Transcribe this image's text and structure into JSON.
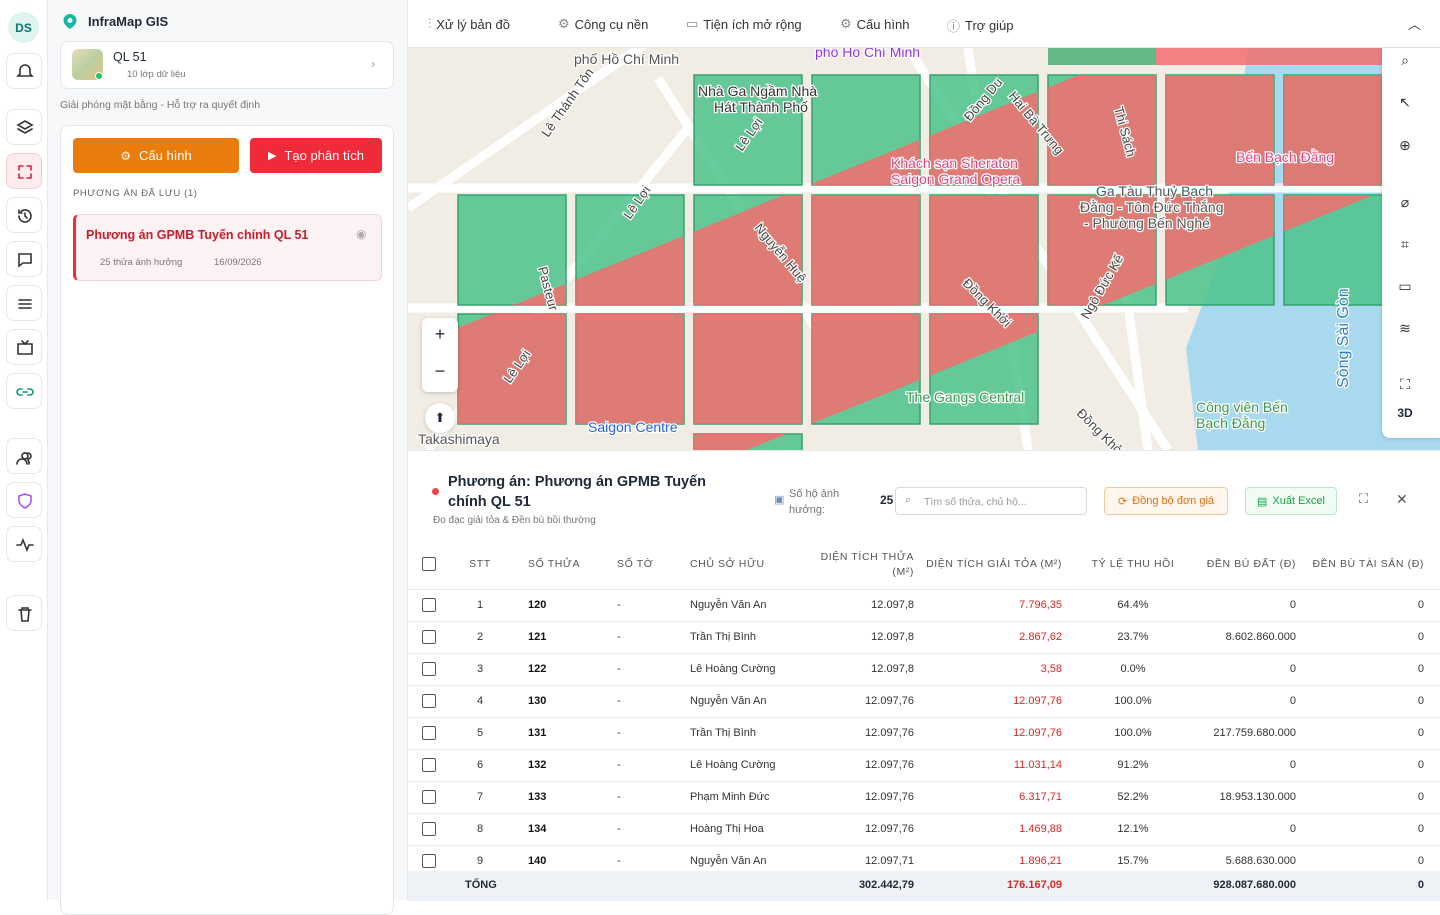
{
  "rail": {
    "avatar": "DS"
  },
  "sidebar": {
    "app_title": "InfraMap GIS",
    "project": {
      "name": "QL 51",
      "layers": "10 lớp dữ liệu"
    },
    "subtitle": "Giải phóng mặt bằng - Hỗ trợ ra quyết định",
    "buttons": [
      "Cấu hình",
      "Tạo phân tích"
    ],
    "saved_label": "PHƯƠNG ÁN ĐÃ LƯU (1)",
    "plans": [
      {
        "name": "Phương án GPMB Tuyến chính QL 51",
        "parcels": "25 thửa ảnh hưởng",
        "date": "16/09/2026"
      }
    ]
  },
  "menu": [
    "Xử lý bản đồ",
    "Công cụ nền",
    "Tiện ích mở rộng",
    "Cấu hình",
    "Trợ giúp"
  ],
  "map": {
    "labels": [
      "phố Hồ Chí Minh",
      "phố Hồ Chí Minh",
      "Nhà Ga Ngầm Nhà",
      "Hát Thành Phố",
      "Lê Thánh Tôn",
      "Lê Lợi",
      "Lê Lợi",
      "Lê Lợi",
      "Nguyễn Huệ",
      "Đồng Du",
      "Hai Bà Trưng",
      "Thi Sách",
      "Pasteur",
      "Đồng Khởi",
      "Đồng Khởi",
      "Khách sạn Sheraton",
      "Saigon Grand Opera",
      "Bến Bạch Đằng",
      "Ga Tàu Thuỷ Bạch",
      "Đằng - Tôn Đức Thắng",
      "- Phường Bến Nghé",
      "Ngô Đức Kế",
      "The Gangs Central",
      "Saigon Centre",
      "Takashimaya",
      "Công viên Bến",
      "Bạch Đằng",
      "Sông Sài Gòn"
    ],
    "zoom": [
      "+",
      "−"
    ],
    "toolbar_3d": "3D"
  },
  "panel": {
    "title": "Phương án: Phương án GPMB Tuyến chính QL 51",
    "subtitle": "Đo đạc giải tỏa & Đền bù bồi thường",
    "households_label": "Số hộ ảnh hưởng:",
    "households": "25",
    "search_placeholder": "Tìm số thửa, chủ hộ...",
    "sync": "Đồng bộ đơn giá",
    "export": "Xuất Excel"
  },
  "table": {
    "headers": [
      "STT",
      "SỐ THỬA",
      "SỐ TỜ",
      "CHỦ SỞ HỮU",
      "DIỆN TÍCH THỬA (M²)",
      "DIỆN TÍCH GIẢI TỎA (M²)",
      "TỶ LỆ THU HỒI",
      "ĐỀN BÙ ĐẤT (Đ)",
      "ĐỀN BÙ TÀI SẢN (Đ)"
    ],
    "rows": [
      [
        "1",
        "120",
        "-",
        "Nguyễn Văn An",
        "12.097,8",
        "7.796,35",
        "64.4%",
        "0",
        "0"
      ],
      [
        "2",
        "121",
        "-",
        "Trần Thị Bình",
        "12.097,8",
        "2.867,62",
        "23.7%",
        "8.602.860.000",
        "0"
      ],
      [
        "3",
        "122",
        "-",
        "Lê Hoàng Cường",
        "12.097,8",
        "3,58",
        "0.0%",
        "0",
        "0"
      ],
      [
        "4",
        "130",
        "-",
        "Nguyễn Văn An",
        "12.097,76",
        "12.097,76",
        "100.0%",
        "0",
        "0"
      ],
      [
        "5",
        "131",
        "-",
        "Trần Thị Bình",
        "12.097,76",
        "12.097,76",
        "100.0%",
        "217.759.680.000",
        "0"
      ],
      [
        "6",
        "132",
        "-",
        "Lê Hoàng Cường",
        "12.097,76",
        "11.031,14",
        "91.2%",
        "0",
        "0"
      ],
      [
        "7",
        "133",
        "-",
        "Phạm Minh Đức",
        "12.097,76",
        "6.317,71",
        "52.2%",
        "18.953.130.000",
        "0"
      ],
      [
        "8",
        "134",
        "-",
        "Hoàng Thị Hoa",
        "12.097,76",
        "1.469,88",
        "12.1%",
        "0",
        "0"
      ],
      [
        "9",
        "140",
        "-",
        "Nguyễn Văn An",
        "12.097,71",
        "1.896,21",
        "15.7%",
        "5.688.630.000",
        "0"
      ]
    ],
    "total": {
      "label": "TỔNG",
      "area": "302.442,79",
      "cleared": "176.167,09",
      "land": "928.087.680.000",
      "assets": "0"
    }
  }
}
